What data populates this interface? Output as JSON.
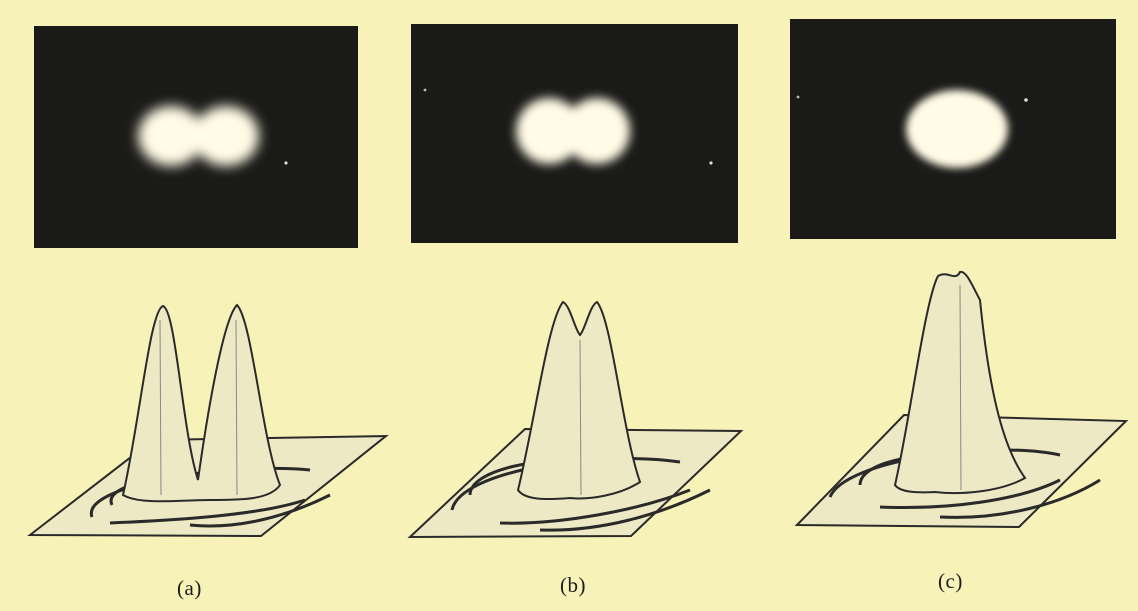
{
  "panels": [
    {
      "id": "a",
      "caption": "(a)",
      "spot_shape": "two-separated-discs",
      "profile": "two-distinct-peaks"
    },
    {
      "id": "b",
      "caption": "(b)",
      "spot_shape": "two-overlapping-discs",
      "profile": "two-peaks-with-dip"
    },
    {
      "id": "c",
      "caption": "(c)",
      "spot_shape": "single-merged-disc",
      "profile": "single-peak"
    }
  ],
  "colors": {
    "background": "#f7f2b7",
    "photo": "#1a1a18",
    "spot": "#fffbe6",
    "surface": "#ece9c4",
    "line": "#2a2a2a"
  }
}
